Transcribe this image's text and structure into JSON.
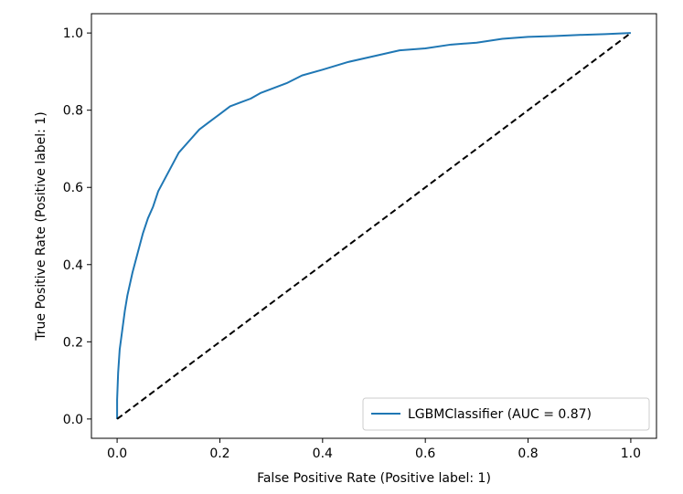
{
  "chart_data": {
    "type": "line",
    "title": "",
    "xlabel": "False Positive Rate (Positive label: 1)",
    "ylabel": "True Positive Rate (Positive label: 1)",
    "xlim": [
      -0.05,
      1.05
    ],
    "ylim": [
      -0.05,
      1.05
    ],
    "xticks": [
      "0.0",
      "0.2",
      "0.4",
      "0.6",
      "0.8",
      "1.0"
    ],
    "yticks": [
      "0.0",
      "0.2",
      "0.4",
      "0.6",
      "0.8",
      "1.0"
    ],
    "grid": false,
    "legend_position": "lower-right",
    "series": [
      {
        "name": "LGBMClassifier (AUC = 0.87)",
        "color": "#1f77b4",
        "style": "solid",
        "x": [
          0.0,
          0.0,
          0.002,
          0.005,
          0.01,
          0.015,
          0.02,
          0.03,
          0.04,
          0.05,
          0.06,
          0.07,
          0.08,
          0.1,
          0.12,
          0.14,
          0.16,
          0.18,
          0.2,
          0.22,
          0.24,
          0.26,
          0.28,
          0.3,
          0.33,
          0.36,
          0.4,
          0.45,
          0.5,
          0.55,
          0.6,
          0.65,
          0.7,
          0.75,
          0.8,
          0.85,
          0.9,
          0.95,
          1.0
        ],
        "y": [
          0.0,
          0.05,
          0.12,
          0.18,
          0.23,
          0.28,
          0.32,
          0.38,
          0.43,
          0.48,
          0.52,
          0.55,
          0.59,
          0.64,
          0.69,
          0.72,
          0.75,
          0.77,
          0.79,
          0.81,
          0.82,
          0.83,
          0.845,
          0.855,
          0.87,
          0.89,
          0.905,
          0.925,
          0.94,
          0.955,
          0.96,
          0.97,
          0.975,
          0.985,
          0.99,
          0.992,
          0.995,
          0.997,
          1.0
        ]
      },
      {
        "name": "",
        "color": "#000000",
        "style": "dashed",
        "x": [
          0.0,
          1.0
        ],
        "y": [
          0.0,
          1.0
        ]
      }
    ]
  }
}
